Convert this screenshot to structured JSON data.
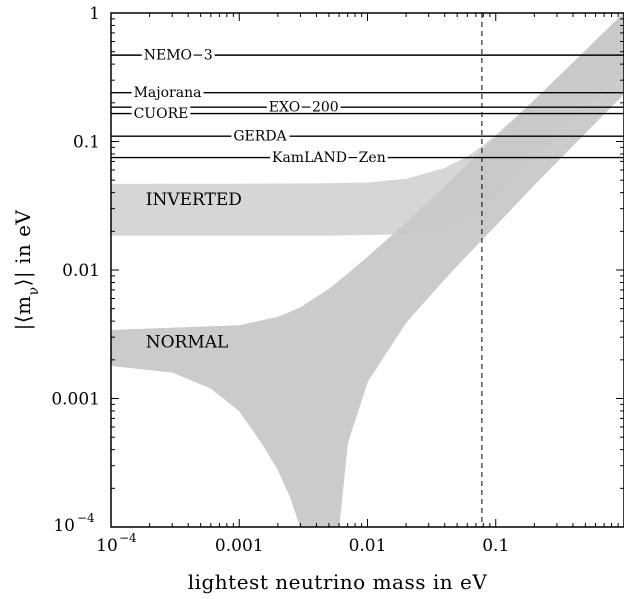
{
  "chart_data": {
    "type": "area",
    "xlabel": "lightest neutrino mass in eV",
    "ylabel": "|⟨m_ν⟩| in eV",
    "xscale": "log",
    "yscale": "log",
    "xlim": [
      0.0001,
      1
    ],
    "ylim": [
      0.0001,
      1
    ],
    "grid": false,
    "x_ticks": [
      {
        "value": 0.0001,
        "base": "10",
        "exp": "−4"
      },
      {
        "value": 0.001,
        "label": "0.001"
      },
      {
        "value": 0.01,
        "label": "0.01"
      },
      {
        "value": 0.1,
        "label": "0.1"
      }
    ],
    "y_ticks": [
      {
        "value": 1,
        "label": "1"
      },
      {
        "value": 0.1,
        "label": "0.1"
      },
      {
        "value": 0.01,
        "label": "0.01"
      },
      {
        "value": 0.001,
        "label": "0.001"
      },
      {
        "value": 0.0001,
        "base": "10",
        "exp": "−4"
      }
    ],
    "vertical_line": {
      "x": 0.078,
      "style": "dashed"
    },
    "experimental_limits": [
      {
        "label": "NEMO−3",
        "value": 0.47,
        "label_x": 0.00018
      },
      {
        "label": "Majorana",
        "value": 0.24,
        "label_x": 0.00015
      },
      {
        "label": "EXO−200",
        "value": 0.185,
        "label_x": 0.0017
      },
      {
        "label": "CUORE",
        "value": 0.165,
        "label_x": 0.00015
      },
      {
        "label": "GERDA",
        "value": 0.11,
        "label_x": 0.0009
      },
      {
        "label": "KamLAND−Zen",
        "value": 0.075,
        "label_x": 0.0018
      }
    ],
    "series": [
      {
        "name": "INVERTED",
        "color": "#d4d4d4",
        "label_at": [
          0.00018,
          0.032
        ],
        "upper": [
          [
            0.0001,
            0.0466
          ],
          [
            0.001,
            0.0467
          ],
          [
            0.005,
            0.0471
          ],
          [
            0.01,
            0.0477
          ],
          [
            0.02,
            0.051
          ],
          [
            0.04,
            0.062
          ],
          [
            0.06,
            0.076
          ],
          [
            0.08,
            0.093
          ],
          [
            0.1,
            0.112
          ],
          [
            0.2,
            0.21
          ],
          [
            0.4,
            0.41
          ],
          [
            0.6,
            0.61
          ],
          [
            1,
            1.0
          ]
        ],
        "lower": [
          [
            0.0001,
            0.0186
          ],
          [
            0.001,
            0.0186
          ],
          [
            0.005,
            0.0186
          ],
          [
            0.01,
            0.0188
          ],
          [
            0.02,
            0.0191
          ],
          [
            0.04,
            0.0219
          ],
          [
            0.06,
            0.0263
          ],
          [
            0.08,
            0.0319
          ],
          [
            0.1,
            0.0384
          ],
          [
            0.2,
            0.074
          ],
          [
            0.4,
            0.146
          ],
          [
            0.6,
            0.22
          ],
          [
            1,
            0.36
          ]
        ]
      },
      {
        "name": "NORMAL",
        "color": "#c8c8c8",
        "label_at": [
          0.00018,
          0.0025
        ],
        "upper": [
          [
            0.0001,
            0.0034
          ],
          [
            0.001,
            0.0037
          ],
          [
            0.002,
            0.0043
          ],
          [
            0.003,
            0.0051
          ],
          [
            0.005,
            0.0071
          ],
          [
            0.007,
            0.0093
          ],
          [
            0.01,
            0.0126
          ],
          [
            0.02,
            0.0233
          ],
          [
            0.04,
            0.0443
          ],
          [
            0.06,
            0.066
          ],
          [
            0.1,
            0.107
          ],
          [
            0.2,
            0.21
          ],
          [
            0.4,
            0.41
          ],
          [
            1,
            1.0
          ]
        ],
        "lower": [
          [
            0.0001,
            0.0018
          ],
          [
            0.0003,
            0.0016
          ],
          [
            0.0006,
            0.0012
          ],
          [
            0.001,
            0.0008
          ],
          [
            0.0015,
            0.00045
          ],
          [
            0.002,
            0.00028
          ],
          [
            0.0025,
            0.00017
          ],
          [
            0.003,
            0.0001
          ],
          [
            0.006,
            0.0001
          ],
          [
            0.007,
            0.00045
          ],
          [
            0.01,
            0.00135
          ],
          [
            0.02,
            0.0039
          ],
          [
            0.04,
            0.0085
          ],
          [
            0.06,
            0.0131
          ],
          [
            0.1,
            0.0222
          ],
          [
            0.2,
            0.046
          ],
          [
            0.4,
            0.093
          ],
          [
            1,
            0.235
          ]
        ]
      }
    ]
  }
}
